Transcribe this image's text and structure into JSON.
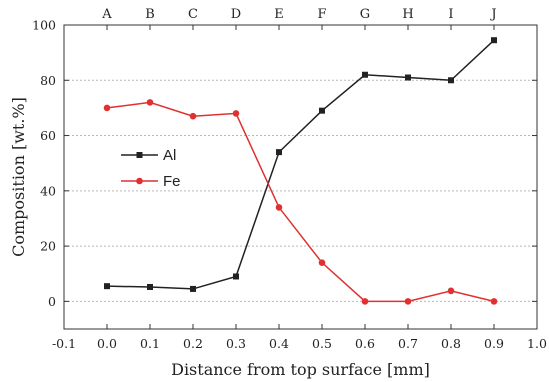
{
  "chart_data": {
    "type": "line",
    "xlabel": "Distance from top surface [mm]",
    "ylabel": "Composition [wt.%]",
    "xlim": [
      -0.1,
      1.0
    ],
    "ylim": [
      -10,
      100
    ],
    "x_ticks": [
      "-0.1",
      "0.0",
      "0.1",
      "0.2",
      "0.3",
      "0.4",
      "0.5",
      "0.6",
      "0.7",
      "0.8",
      "0.9",
      "1.0"
    ],
    "x_tick_values": [
      -0.1,
      0.0,
      0.1,
      0.2,
      0.3,
      0.4,
      0.5,
      0.6,
      0.7,
      0.8,
      0.9,
      1.0
    ],
    "y_ticks": [
      "0",
      "20",
      "40",
      "60",
      "80",
      "100"
    ],
    "y_tick_values": [
      0,
      20,
      40,
      60,
      80,
      100
    ],
    "top_labels": [
      "A",
      "B",
      "C",
      "D",
      "E",
      "F",
      "G",
      "H",
      "I",
      "J"
    ],
    "x": [
      0.0,
      0.1,
      0.2,
      0.3,
      0.4,
      0.5,
      0.6,
      0.7,
      0.8,
      0.9
    ],
    "grid": "horizontal dotted",
    "legend_position": "center-left",
    "series": [
      {
        "name": "Al",
        "color": "#222222",
        "marker": "square",
        "values": [
          5.5,
          5.2,
          4.5,
          9.0,
          54.0,
          69.0,
          82.0,
          81.0,
          80.0,
          94.5
        ]
      },
      {
        "name": "Fe",
        "color": "#e03030",
        "marker": "circle",
        "values": [
          70.0,
          72.0,
          67.0,
          68.0,
          34.0,
          14.0,
          0.0,
          0.0,
          3.8,
          0.0
        ]
      }
    ]
  }
}
